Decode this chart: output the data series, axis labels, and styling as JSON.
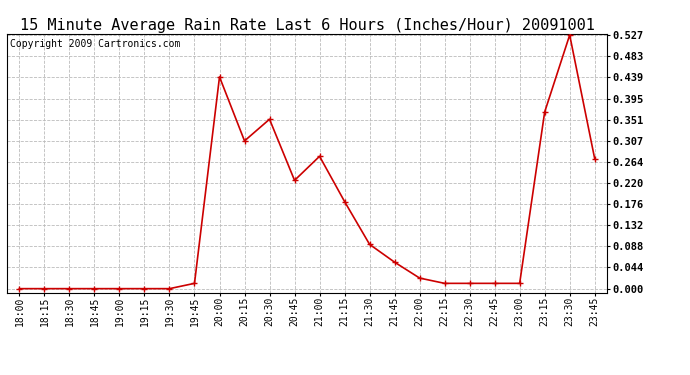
{
  "title": "15 Minute Average Rain Rate Last 6 Hours (Inches/Hour) 20091001",
  "copyright": "Copyright 2009 Cartronics.com",
  "x_labels": [
    "18:00",
    "18:15",
    "18:30",
    "18:45",
    "19:00",
    "19:15",
    "19:30",
    "19:45",
    "20:00",
    "20:15",
    "20:30",
    "20:45",
    "21:00",
    "21:15",
    "21:30",
    "21:45",
    "22:00",
    "22:15",
    "22:30",
    "22:45",
    "23:00",
    "23:15",
    "23:30",
    "23:45"
  ],
  "y_values": [
    0.0,
    0.0,
    0.0,
    0.0,
    0.0,
    0.0,
    0.0,
    0.011,
    0.44,
    0.307,
    0.352,
    0.225,
    0.275,
    0.181,
    0.092,
    0.055,
    0.022,
    0.011,
    0.011,
    0.011,
    0.011,
    0.367,
    0.527,
    0.27
  ],
  "line_color": "#cc0000",
  "marker_color": "#cc0000",
  "background_color": "#ffffff",
  "grid_color": "#bbbbbb",
  "yticks": [
    0.0,
    0.044,
    0.088,
    0.132,
    0.176,
    0.22,
    0.264,
    0.307,
    0.351,
    0.395,
    0.439,
    0.483,
    0.527
  ],
  "ymax": 0.527,
  "title_fontsize": 11,
  "copyright_fontsize": 7,
  "tick_fontsize": 7.5,
  "xtick_fontsize": 7
}
